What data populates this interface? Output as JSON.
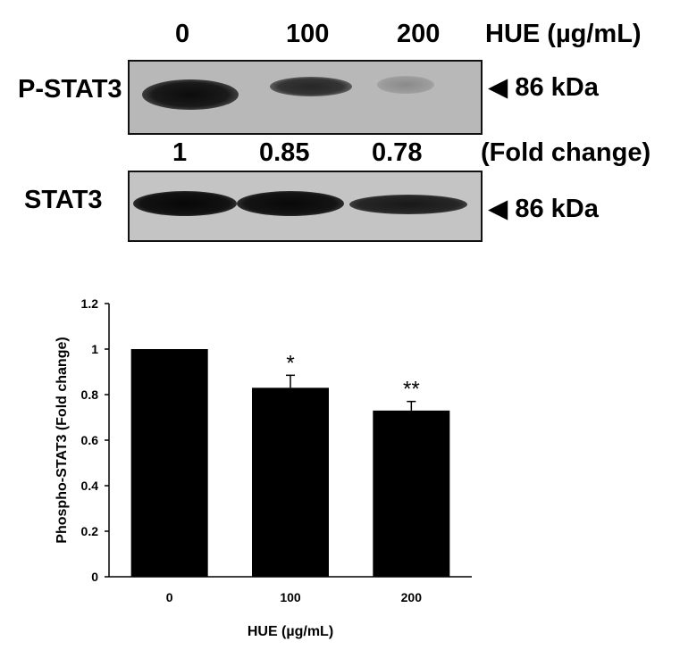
{
  "western_blot": {
    "lane_labels": [
      "0",
      "100",
      "200"
    ],
    "treatment_label": "HUE (µg/mL)",
    "fold_change_values": [
      "1",
      "0.85",
      "0.78"
    ],
    "fold_change_label": "(Fold change)",
    "rows": [
      {
        "protein": "P-STAT3",
        "marker": "◀ 86 kDa"
      },
      {
        "protein": "STAT3",
        "marker": "◀ 86 kDa"
      }
    ]
  },
  "chart_data": {
    "type": "bar",
    "categories": [
      "0",
      "100",
      "200"
    ],
    "values": [
      1.0,
      0.83,
      0.73
    ],
    "errors": [
      0.0,
      0.055,
      0.04
    ],
    "significance": [
      "",
      "*",
      "**"
    ],
    "title": "",
    "xlabel": "HUE (µg/mL)",
    "ylabel": "Phospho-STAT3 (Fold change)",
    "ylim": [
      0,
      1.2
    ],
    "yticks": [
      "0",
      "0.2",
      "0.4",
      "0.6",
      "0.8",
      "1",
      "1.2"
    ],
    "bar_color": "#000000",
    "grid": false
  }
}
